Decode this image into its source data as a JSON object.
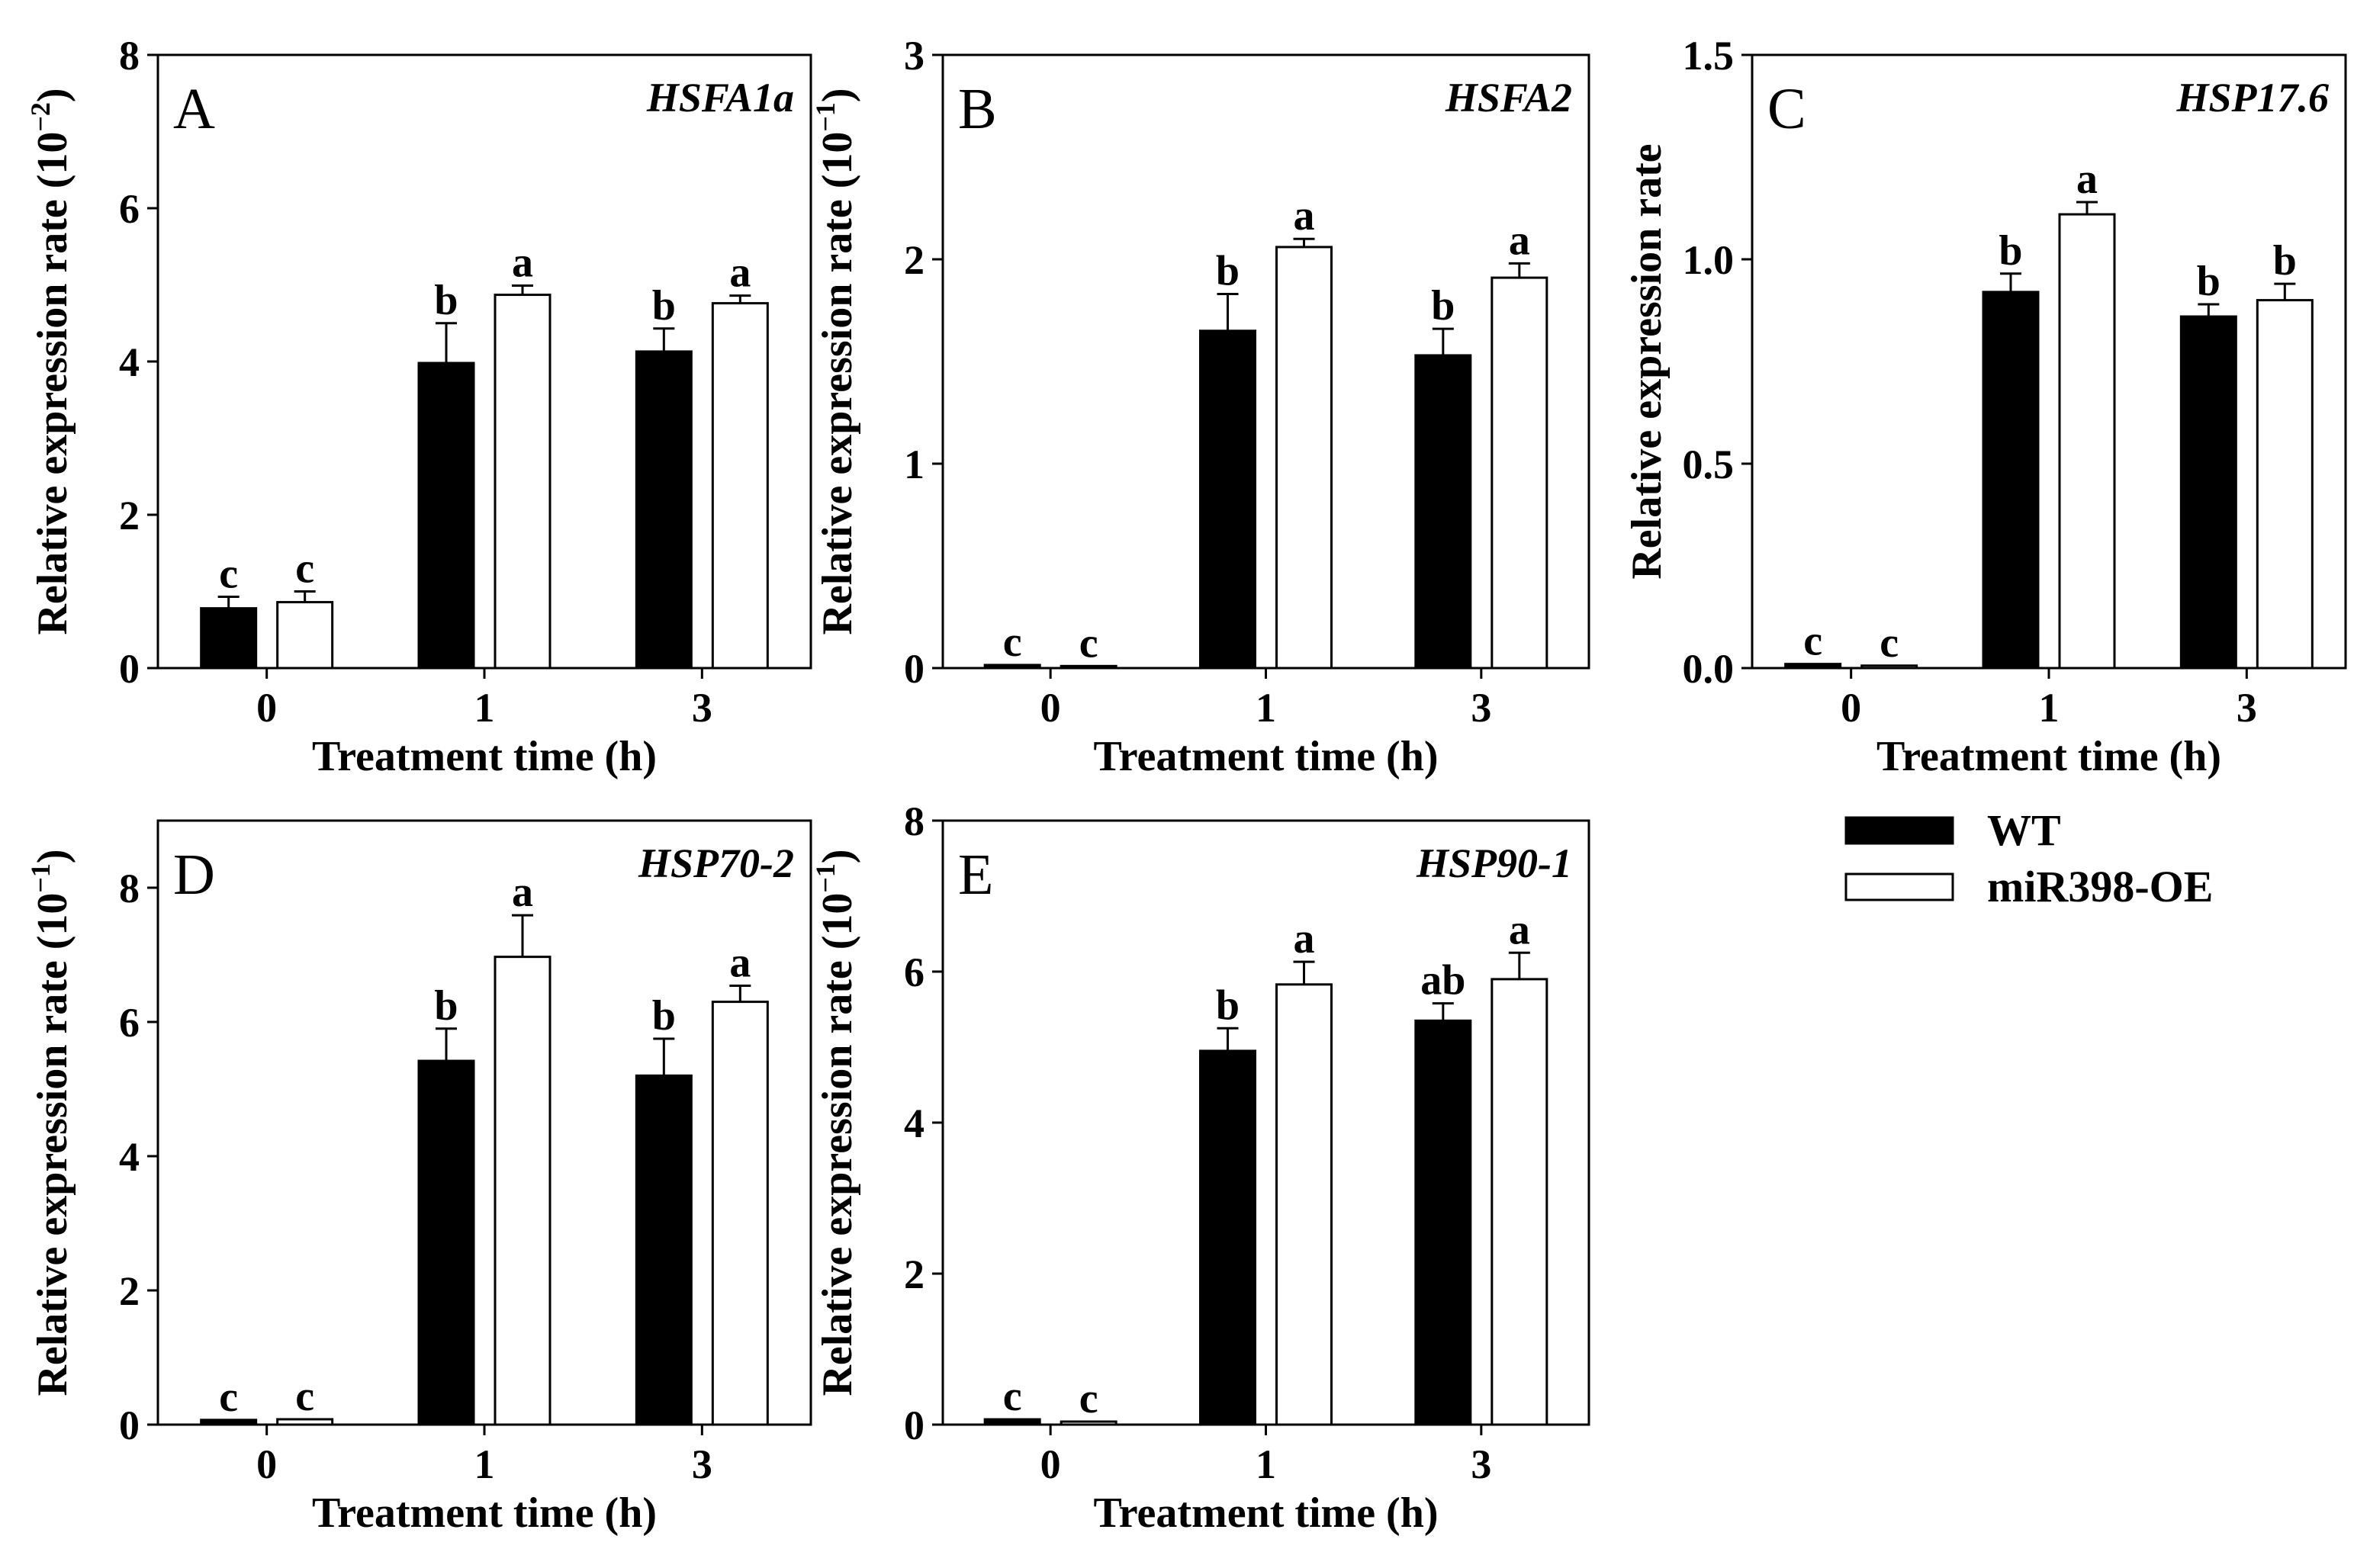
{
  "chart_data": [
    {
      "type": "bar",
      "panel": "A",
      "gene": "HSFA1a",
      "categories": [
        "0",
        "1",
        "3"
      ],
      "series": [
        {
          "name": "WT",
          "values": [
            0.78,
            3.98,
            4.13
          ],
          "errors": [
            0.15,
            0.52,
            0.3
          ],
          "letters": [
            "c",
            "b",
            "b"
          ]
        },
        {
          "name": "miR398-OE",
          "values": [
            0.86,
            4.87,
            4.76
          ],
          "errors": [
            0.14,
            0.12,
            0.1
          ],
          "letters": [
            "c",
            "a",
            "a"
          ]
        }
      ],
      "ylim": [
        0,
        8
      ],
      "yticks": [
        0,
        2,
        4,
        6,
        8
      ],
      "ytick_labels": [
        "0",
        "2",
        "4",
        "6",
        "8"
      ],
      "ylabel": "Relative expression rate",
      "ylabel_unit_base": "(10",
      "ylabel_unit_exp": "−2",
      "ylabel_unit_close": ")",
      "xlabel": "Treatment time (h)"
    },
    {
      "type": "bar",
      "panel": "B",
      "gene": "HSFA2",
      "categories": [
        "0",
        "1",
        "3"
      ],
      "series": [
        {
          "name": "WT",
          "values": [
            0.015,
            1.65,
            1.53
          ],
          "errors": [
            0,
            0.18,
            0.13
          ],
          "letters": [
            "c",
            "b",
            "b"
          ]
        },
        {
          "name": "miR398-OE",
          "values": [
            0.01,
            2.06,
            1.91
          ],
          "errors": [
            0,
            0.04,
            0.07
          ],
          "letters": [
            "c",
            "a",
            "a"
          ]
        }
      ],
      "ylim": [
        0,
        3
      ],
      "yticks": [
        0,
        1,
        2,
        3
      ],
      "ytick_labels": [
        "0",
        "1",
        "2",
        "3"
      ],
      "ylabel": "Relative expression rate",
      "ylabel_unit_base": "(10",
      "ylabel_unit_exp": "−1",
      "ylabel_unit_close": ")",
      "xlabel": "Treatment time (h)"
    },
    {
      "type": "bar",
      "panel": "C",
      "gene": "HSP17.6",
      "categories": [
        "0",
        "1",
        "3"
      ],
      "series": [
        {
          "name": "WT",
          "values": [
            0.01,
            0.92,
            0.86
          ],
          "errors": [
            0,
            0.045,
            0.03
          ],
          "letters": [
            "c",
            "b",
            "b"
          ]
        },
        {
          "name": "miR398-OE",
          "values": [
            0.006,
            1.11,
            0.9
          ],
          "errors": [
            0,
            0.03,
            0.04
          ],
          "letters": [
            "c",
            "a",
            "b"
          ]
        }
      ],
      "ylim": [
        0,
        1.5
      ],
      "yticks": [
        0,
        0.5,
        1.0,
        1.5
      ],
      "ytick_labels": [
        "0.0",
        "0.5",
        "1.0",
        "1.5"
      ],
      "ylabel": "Relative expression rate",
      "xlabel": "Treatment time (h)"
    },
    {
      "type": "bar",
      "panel": "D",
      "gene": "HSP70-2",
      "categories": [
        "0",
        "1",
        "3"
      ],
      "series": [
        {
          "name": "WT",
          "values": [
            0.07,
            5.42,
            5.2
          ],
          "errors": [
            0,
            0.48,
            0.55
          ],
          "letters": [
            "c",
            "b",
            "b"
          ]
        },
        {
          "name": "miR398-OE",
          "values": [
            0.08,
            6.97,
            6.3
          ],
          "errors": [
            0,
            0.62,
            0.24
          ],
          "letters": [
            "c",
            "a",
            "a"
          ]
        }
      ],
      "ylim": [
        0,
        9
      ],
      "yticks": [
        0,
        2,
        4,
        6,
        8
      ],
      "ytick_labels": [
        "0",
        "2",
        "4",
        "6",
        "8"
      ],
      "ylabel": "Relative expression rate",
      "ylabel_unit_base": "(10",
      "ylabel_unit_exp": "−1",
      "ylabel_unit_close": ")",
      "xlabel": "Treatment time (h)"
    },
    {
      "type": "bar",
      "panel": "E",
      "gene": "HSP90-1",
      "categories": [
        "0",
        "1",
        "3"
      ],
      "series": [
        {
          "name": "WT",
          "values": [
            0.07,
            4.95,
            5.35
          ],
          "errors": [
            0,
            0.3,
            0.23
          ],
          "letters": [
            "c",
            "b",
            "ab"
          ]
        },
        {
          "name": "miR398-OE",
          "values": [
            0.04,
            5.83,
            5.9
          ],
          "errors": [
            0,
            0.3,
            0.35
          ],
          "letters": [
            "c",
            "a",
            "a"
          ]
        }
      ],
      "ylim": [
        0,
        8
      ],
      "yticks": [
        0,
        2,
        4,
        6,
        8
      ],
      "ytick_labels": [
        "0",
        "2",
        "4",
        "6",
        "8"
      ],
      "ylabel": "Relative expression rate",
      "ylabel_unit_base": "(10",
      "ylabel_unit_exp": "−1",
      "ylabel_unit_close": ")",
      "xlabel": "Treatment time (h)"
    }
  ],
  "legend": {
    "items": [
      {
        "label": "WT",
        "fill": "#000000"
      },
      {
        "label": "miR398-OE",
        "fill": "#ffffff"
      }
    ]
  },
  "colors": {
    "wt_fill": "#000000",
    "oe_fill": "#ffffff",
    "stroke": "#000000"
  }
}
